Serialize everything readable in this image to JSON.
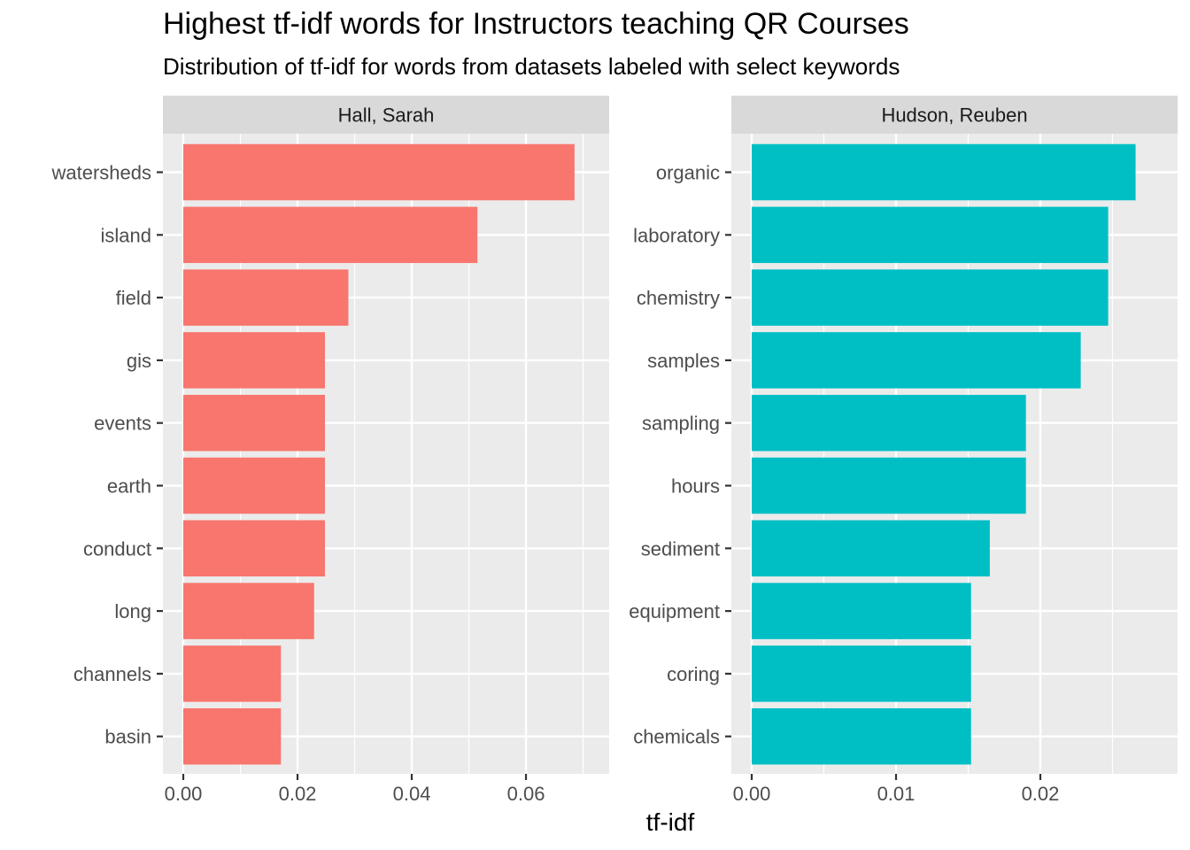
{
  "chart_data": {
    "type": "bar",
    "orientation": "horizontal",
    "title": "Highest tf-idf words for Instructors teaching QR Courses",
    "subtitle": "Distribution of tf-idf for words from datasets labeled with select keywords",
    "xlabel": "tf-idf",
    "ylabel": "",
    "grid": true,
    "legend": "none",
    "panels": [
      {
        "name": "Hall, Sarah",
        "color": "#F8766D",
        "xlim": [
          0,
          0.071
        ],
        "ticks": [
          0.0,
          0.02,
          0.04,
          0.06
        ],
        "tick_labels": [
          "0.00",
          "0.02",
          "0.04",
          "0.06"
        ],
        "categories": [
          "watersheds",
          "island",
          "field",
          "gis",
          "events",
          "earth",
          "conduct",
          "long",
          "channels",
          "basin"
        ],
        "values": [
          0.0685,
          0.0515,
          0.0289,
          0.0248,
          0.0248,
          0.0248,
          0.0248,
          0.0229,
          0.0171,
          0.0171
        ]
      },
      {
        "name": "Hudson, Reuben",
        "color": "#00BFC4",
        "xlim": [
          0,
          0.0281
        ],
        "ticks": [
          0.0,
          0.01,
          0.02
        ],
        "tick_labels": [
          "0.00",
          "0.01",
          "0.02"
        ],
        "categories": [
          "organic",
          "laboratory",
          "chemistry",
          "samples",
          "sampling",
          "hours",
          "sediment",
          "equipment",
          "coring",
          "chemicals"
        ],
        "values": [
          0.0266,
          0.0247,
          0.0247,
          0.0228,
          0.019,
          0.019,
          0.0165,
          0.0152,
          0.0152,
          0.0152
        ]
      }
    ]
  }
}
